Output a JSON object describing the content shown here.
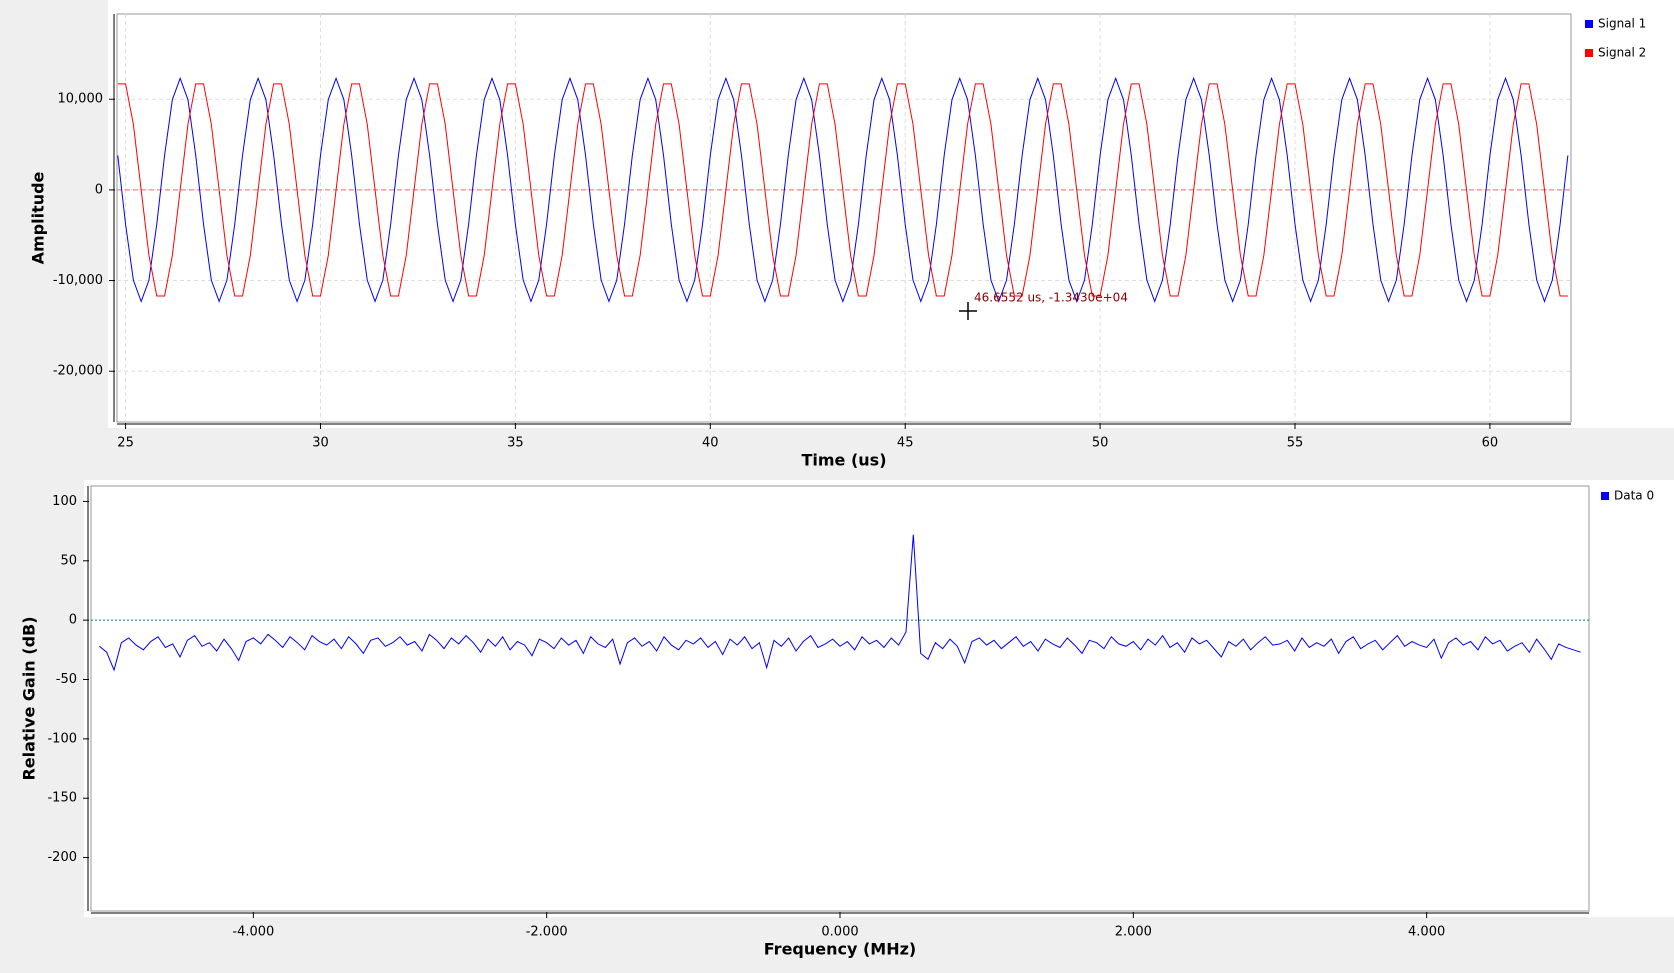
{
  "chart_data": [
    {
      "type": "line",
      "x_label": "Time (us)",
      "y_label": "Amplitude",
      "x": [
        24.8,
        25,
        25.2,
        25.4,
        25.6,
        25.8,
        26,
        26.2,
        26.4,
        26.6,
        26.8,
        27,
        27.2,
        27.4,
        27.6,
        27.8,
        28,
        28.2,
        28.4,
        28.6,
        28.8,
        29,
        29.2,
        29.4,
        29.6,
        29.8,
        30,
        30.2,
        30.4,
        30.6,
        30.8,
        31,
        31.2,
        31.4,
        31.6,
        31.8,
        32,
        32.2,
        32.4,
        32.6,
        32.8,
        33,
        33.2,
        33.4,
        33.6,
        33.8,
        34,
        34.2,
        34.4,
        34.6,
        34.8,
        35,
        35.2,
        35.4,
        35.6,
        35.8,
        36,
        36.2,
        36.4,
        36.6,
        36.8,
        37,
        37.2,
        37.4,
        37.6,
        37.8,
        38,
        38.2,
        38.4,
        38.6,
        38.8,
        39,
        39.2,
        39.4,
        39.6,
        39.8,
        40,
        40.2,
        40.4,
        40.6,
        40.8,
        41,
        41.2,
        41.4,
        41.6,
        41.8,
        42,
        42.2,
        42.4,
        42.6,
        42.8,
        43,
        43.2,
        43.4,
        43.6,
        43.8,
        44,
        44.2,
        44.4,
        44.6,
        44.8,
        45,
        45.2,
        45.4,
        45.6,
        45.8,
        46,
        46.2,
        46.4,
        46.6,
        46.8,
        47,
        47.2,
        47.4,
        47.6,
        47.8,
        48,
        48.2,
        48.4,
        48.6,
        48.8,
        49,
        49.2,
        49.4,
        49.6,
        49.8,
        50,
        50.2,
        50.4,
        50.6,
        50.8,
        51,
        51.2,
        51.4,
        51.6,
        51.8,
        52,
        52.2,
        52.4,
        52.6,
        52.8,
        53,
        53.2,
        53.4,
        53.6,
        53.8,
        54,
        54.2,
        54.4,
        54.6,
        54.8,
        55,
        55.2,
        55.4,
        55.6,
        55.8,
        56,
        56.2,
        56.4,
        56.6,
        56.8,
        57,
        57.2,
        57.4,
        57.6,
        57.8,
        58,
        58.2,
        58.4,
        58.6,
        58.8,
        59,
        59.2,
        59.4,
        59.6,
        59.8,
        60,
        60.2,
        60.4,
        60.6,
        60.8,
        61,
        61.2,
        61.4,
        61.6,
        61.8,
        62
      ],
      "series": [
        {
          "name": "Signal 1",
          "color": "#0000ff",
          "values": [
            3801,
            -3801,
            -9951,
            -12300,
            -9951,
            -3801,
            3801,
            9951,
            12300,
            9951,
            3801,
            -3801,
            -9951,
            -12300,
            -9951,
            -3801,
            3801,
            9951,
            12300,
            9951,
            3801,
            -3801,
            -9951,
            -12300,
            -9951,
            -3801,
            3801,
            9951,
            12300,
            9951,
            3801,
            -3801,
            -9951,
            -12300,
            -9951,
            -3801,
            3801,
            9951,
            12300,
            9951,
            3801,
            -3801,
            -9951,
            -12300,
            -9951,
            -3801,
            3801,
            9951,
            12300,
            9951,
            3801,
            -3801,
            -9951,
            -12300,
            -9951,
            -3801,
            3801,
            9951,
            12300,
            9951,
            3801,
            -3801,
            -9951,
            -12300,
            -9951,
            -3801,
            3801,
            9951,
            12300,
            9951,
            3801,
            -3801,
            -9951,
            -12300,
            -9951,
            -3801,
            3801,
            9951,
            12300,
            9951,
            3801,
            -3801,
            -9951,
            -12300,
            -9951,
            -3801,
            3801,
            9951,
            12300,
            9951,
            3801,
            -3801,
            -9951,
            -12300,
            -9951,
            -3801,
            3801,
            9951,
            12300,
            9951,
            3801,
            -3801,
            -9951,
            -12300,
            -9951,
            -3801,
            3801,
            9951,
            12300,
            9951,
            3801,
            -3801,
            -9951,
            -12300,
            -9951,
            -3801,
            3801,
            9951,
            12300,
            9951,
            3801,
            -3801,
            -9951,
            -12300,
            -9951,
            -3801,
            3801,
            9951,
            12300,
            9951,
            3801,
            -3801,
            -9951,
            -12300,
            -9951,
            -3801,
            3801,
            9951,
            12300,
            9951,
            3801,
            -3801,
            -9951,
            -12300,
            -9951,
            -3801,
            3801,
            9951,
            12300,
            9951,
            3801,
            -3801,
            -9951,
            -12300,
            -9951,
            -3801,
            3801,
            9951,
            12300,
            9951,
            3801,
            -3801,
            -9951,
            -12300,
            -9951,
            -3801,
            3801,
            9951,
            12300,
            9951,
            3801,
            -3801,
            -9951,
            -12300,
            -9951,
            -3801,
            3801,
            9951,
            12300,
            9951,
            3801,
            -3801,
            -9951,
            -12300,
            -9951,
            -3801,
            3801
          ]
        },
        {
          "name": "Signal 2",
          "color": "#ff0000",
          "values": [
            11698,
            11698,
            7230,
            0,
            -7230,
            -11698,
            -11698,
            -7230,
            0,
            7230,
            11698,
            11698,
            7230,
            0,
            -7230,
            -11698,
            -11698,
            -7230,
            0,
            7230,
            11698,
            11698,
            7230,
            0,
            -7230,
            -11698,
            -11698,
            -7230,
            0,
            7230,
            11698,
            11698,
            7230,
            0,
            -7230,
            -11698,
            -11698,
            -7230,
            0,
            7230,
            11698,
            11698,
            7230,
            0,
            -7230,
            -11698,
            -11698,
            -7230,
            0,
            7230,
            11698,
            11698,
            7230,
            0,
            -7230,
            -11698,
            -11698,
            -7230,
            0,
            7230,
            11698,
            11698,
            7230,
            0,
            -7230,
            -11698,
            -11698,
            -7230,
            0,
            7230,
            11698,
            11698,
            7230,
            0,
            -7230,
            -11698,
            -11698,
            -7230,
            0,
            7230,
            11698,
            11698,
            7230,
            0,
            -7230,
            -11698,
            -11698,
            -7230,
            0,
            7230,
            11698,
            11698,
            7230,
            0,
            -7230,
            -11698,
            -11698,
            -7230,
            0,
            7230,
            11698,
            11698,
            7230,
            0,
            -7230,
            -11698,
            -11698,
            -7230,
            0,
            7230,
            11698,
            11698,
            7230,
            0,
            -7230,
            -11698,
            -11698,
            -7230,
            0,
            7230,
            11698,
            11698,
            7230,
            0,
            -7230,
            -11698,
            -11698,
            -7230,
            0,
            7230,
            11698,
            11698,
            7230,
            0,
            -7230,
            -11698,
            -11698,
            -7230,
            0,
            7230,
            11698,
            11698,
            7230,
            0,
            -7230,
            -11698,
            -11698,
            -7230,
            0,
            7230,
            11698,
            11698,
            7230,
            0,
            -7230,
            -11698,
            -11698,
            -7230,
            0,
            7230,
            11698,
            11698,
            7230,
            0,
            -7230,
            -11698,
            -11698,
            -7230,
            0,
            7230,
            11698,
            11698,
            7230,
            0,
            -7230,
            -11698,
            -11698,
            -7230,
            0,
            7230,
            11698,
            11698,
            7230,
            0,
            -7230,
            -11698,
            -11698
          ]
        }
      ],
      "xlim": [
        24.78,
        62.08
      ],
      "xticks": [
        25,
        30,
        35,
        40,
        45,
        50,
        55,
        60
      ],
      "ylim": [
        -25600,
        19400
      ],
      "yticks": [
        {
          "value": 10000,
          "label": "10,000"
        },
        0,
        {
          "value": -10000,
          "label": "-10,000"
        },
        {
          "value": -20000,
          "label": "-20,000"
        }
      ],
      "grid": true,
      "legend": "right",
      "annotation": "46.6552 us, -1.3430e+04"
    },
    {
      "type": "line",
      "x_label": "Frequency (MHz)",
      "y_label": "Relative Gain (dB)",
      "x": [
        -5.05,
        -5,
        -4.95,
        -4.9,
        -4.85,
        -4.8,
        -4.75,
        -4.7,
        -4.65,
        -4.6,
        -4.55,
        -4.5,
        -4.45,
        -4.4,
        -4.35,
        -4.3,
        -4.25,
        -4.2,
        -4.15,
        -4.1,
        -4.05,
        -4,
        -3.95,
        -3.9,
        -3.85,
        -3.8,
        -3.75,
        -3.7,
        -3.65,
        -3.6,
        -3.55,
        -3.5,
        -3.45,
        -3.4,
        -3.35,
        -3.3,
        -3.25,
        -3.2,
        -3.15,
        -3.1,
        -3.05,
        -3,
        -2.95,
        -2.9,
        -2.85,
        -2.8,
        -2.75,
        -2.7,
        -2.65,
        -2.6,
        -2.55,
        -2.5,
        -2.45,
        -2.4,
        -2.35,
        -2.3,
        -2.25,
        -2.2,
        -2.15,
        -2.1,
        -2.05,
        -2,
        -1.95,
        -1.9,
        -1.85,
        -1.8,
        -1.75,
        -1.7,
        -1.65,
        -1.6,
        -1.55,
        -1.5,
        -1.45,
        -1.4,
        -1.35,
        -1.3,
        -1.25,
        -1.2,
        -1.15,
        -1.1,
        -1.05,
        -1,
        -0.95,
        -0.9,
        -0.85,
        -0.8,
        -0.75,
        -0.7,
        -0.65,
        -0.6,
        -0.55,
        -0.5,
        -0.45,
        -0.4,
        -0.35,
        -0.3,
        -0.25,
        -0.2,
        -0.15,
        -0.1,
        -0.05,
        0,
        0.05,
        0.1,
        0.15,
        0.2,
        0.25,
        0.3,
        0.35,
        0.4,
        0.45,
        0.5,
        0.55,
        0.6,
        0.65,
        0.7,
        0.75,
        0.8,
        0.85,
        0.9,
        0.95,
        1,
        1.05,
        1.1,
        1.15,
        1.2,
        1.25,
        1.3,
        1.35,
        1.4,
        1.45,
        1.5,
        1.55,
        1.6,
        1.65,
        1.7,
        1.75,
        1.8,
        1.85,
        1.9,
        1.95,
        2,
        2.05,
        2.1,
        2.15,
        2.2,
        2.25,
        2.3,
        2.35,
        2.4,
        2.45,
        2.5,
        2.55,
        2.6,
        2.65,
        2.7,
        2.75,
        2.8,
        2.85,
        2.9,
        2.95,
        3,
        3.05,
        3.1,
        3.15,
        3.2,
        3.25,
        3.3,
        3.35,
        3.4,
        3.45,
        3.5,
        3.55,
        3.6,
        3.65,
        3.7,
        3.75,
        3.8,
        3.85,
        3.9,
        3.95,
        4,
        4.05,
        4.1,
        4.15,
        4.2,
        4.25,
        4.3,
        4.35,
        4.4,
        4.45,
        4.5,
        4.55,
        4.6,
        4.65,
        4.7,
        4.75,
        4.8,
        4.85,
        4.9,
        4.95,
        5,
        5.05
      ],
      "series": [
        {
          "name": "Data 0",
          "color": "#0000ff",
          "values": [
            -22,
            -27,
            -42,
            -19,
            -15,
            -21,
            -25,
            -18,
            -14,
            -23,
            -20,
            -31,
            -17,
            -13,
            -22,
            -19,
            -26,
            -16,
            -24,
            -34,
            -18,
            -15,
            -20,
            -12,
            -17,
            -23,
            -14,
            -19,
            -25,
            -13,
            -18,
            -21,
            -16,
            -24,
            -14,
            -20,
            -28,
            -17,
            -15,
            -22,
            -19,
            -14,
            -21,
            -18,
            -26,
            -12,
            -17,
            -24,
            -15,
            -20,
            -13,
            -19,
            -27,
            -16,
            -22,
            -14,
            -25,
            -18,
            -21,
            -30,
            -16,
            -19,
            -24,
            -15,
            -21,
            -17,
            -28,
            -14,
            -20,
            -23,
            -16,
            -37,
            -19,
            -15,
            -22,
            -18,
            -26,
            -14,
            -21,
            -25,
            -17,
            -20,
            -15,
            -23,
            -18,
            -29,
            -16,
            -21,
            -14,
            -24,
            -19,
            -40,
            -17,
            -22,
            -15,
            -26,
            -18,
            -13,
            -23,
            -20,
            -16,
            -22,
            -18,
            -25,
            -14,
            -20,
            -17,
            -23,
            -15,
            -21,
            -10,
            72,
            -28,
            -33,
            -19,
            -24,
            -16,
            -22,
            -36,
            -18,
            -15,
            -21,
            -17,
            -24,
            -19,
            -14,
            -22,
            -18,
            -26,
            -16,
            -20,
            -23,
            -15,
            -21,
            -28,
            -17,
            -19,
            -24,
            -14,
            -20,
            -22,
            -18,
            -25,
            -16,
            -21,
            -13,
            -23,
            -19,
            -27,
            -15,
            -20,
            -17,
            -24,
            -31,
            -18,
            -22,
            -16,
            -25,
            -19,
            -14,
            -21,
            -20,
            -17,
            -26,
            -15,
            -23,
            -19,
            -22,
            -16,
            -28,
            -18,
            -14,
            -24,
            -20,
            -17,
            -25,
            -19,
            -13,
            -22,
            -18,
            -21,
            -23,
            -16,
            -32,
            -19,
            -15,
            -21,
            -18,
            -25,
            -14,
            -20,
            -17,
            -26,
            -22,
            -19,
            -27,
            -16,
            -24,
            -33,
            -20,
            -23,
            -25,
            -27
          ]
        }
      ],
      "xlim": [
        -5.107,
        5.107
      ],
      "xticks": [
        {
          "value": -4,
          "label": "-4.000"
        },
        {
          "value": -2,
          "label": "-2.000"
        },
        {
          "value": 0,
          "label": "0.000"
        },
        {
          "value": 2,
          "label": "2.000"
        },
        {
          "value": 4,
          "label": "4.000"
        }
      ],
      "ylim": [
        -245,
        113
      ],
      "yticks": [
        100,
        50,
        0,
        -50,
        -100,
        -150,
        -200
      ],
      "grid": false,
      "legend": "right"
    }
  ]
}
